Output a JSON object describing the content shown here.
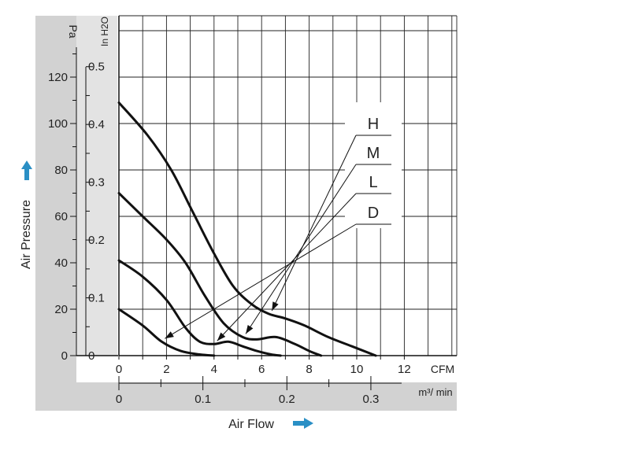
{
  "chart_data": {
    "type": "line",
    "xlabel": "Air Flow",
    "ylabel": "Air Pressure",
    "x_unit_primary": "CFM",
    "x_unit_secondary": "m³/ min",
    "y_unit_primary": "Pa",
    "y_unit_secondary": "In H2O",
    "xlim": [
      0,
      14
    ],
    "ylim": [
      0,
      140
    ],
    "x_ticks": [
      "0",
      "2",
      "4",
      "6",
      "8",
      "10",
      "12"
    ],
    "x_secondary_ticks": [
      "0",
      "0.1",
      "0.2",
      "0.3"
    ],
    "y_ticks": [
      "0",
      "20",
      "40",
      "60",
      "80",
      "100",
      "120"
    ],
    "y_secondary_ticks": [
      "0",
      "0.1",
      "0.2",
      "0.3",
      "0.4",
      "0.5"
    ],
    "grid": true,
    "legend_position": "right",
    "series": [
      {
        "name": "H",
        "x": [
          0,
          1.2,
          2.2,
          3.1,
          4.0,
          4.8,
          5.6,
          6.3,
          7.0,
          7.8,
          8.8,
          9.8,
          10.8
        ],
        "y": [
          109,
          95,
          80,
          62,
          44,
          30,
          22,
          18,
          16,
          13,
          8,
          4,
          0
        ]
      },
      {
        "name": "M",
        "x": [
          0,
          1.0,
          2.0,
          2.8,
          3.6,
          4.4,
          5.2,
          5.8,
          6.6,
          7.4,
          8.0,
          8.5
        ],
        "y": [
          70,
          60,
          50,
          40,
          26,
          14,
          8,
          7,
          8,
          5,
          2,
          0
        ]
      },
      {
        "name": "L",
        "x": [
          0,
          1.0,
          2.0,
          2.8,
          3.4,
          4.0,
          4.6,
          5.2,
          5.8,
          6.4,
          6.8
        ],
        "y": [
          41,
          34,
          24,
          12,
          6,
          5,
          6,
          4,
          2,
          0.5,
          0
        ]
      },
      {
        "name": "D",
        "x": [
          0,
          1.0,
          1.8,
          2.6,
          3.4,
          4.0
        ],
        "y": [
          20,
          13,
          6,
          2,
          0.5,
          0
        ]
      }
    ]
  },
  "arrows": {
    "color": "#2a8fc5"
  }
}
